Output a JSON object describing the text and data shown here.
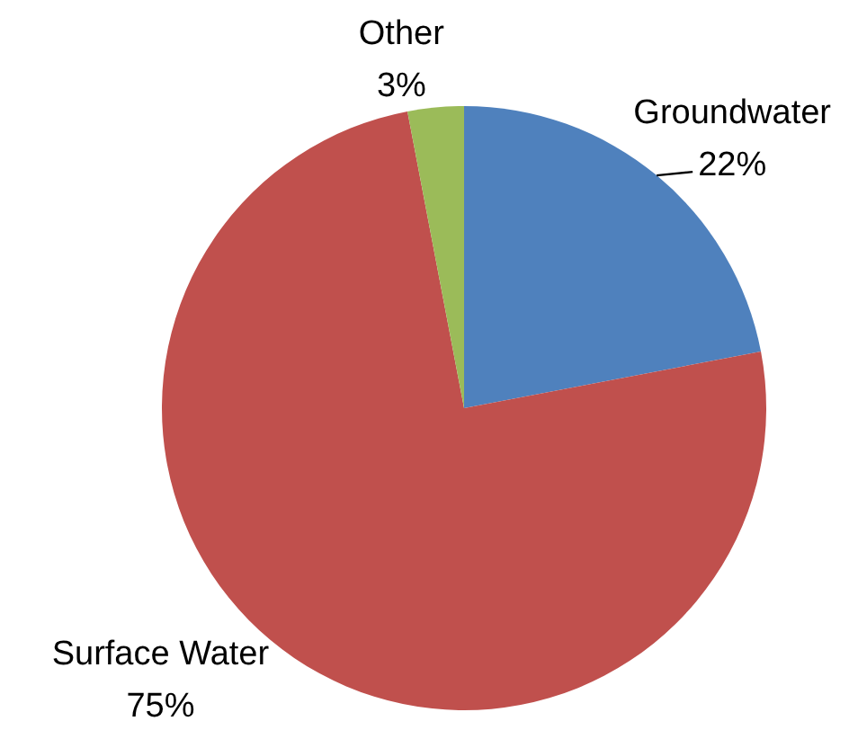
{
  "chart_data": {
    "type": "pie",
    "categories": [
      "Groundwater",
      "Surface Water",
      "Other"
    ],
    "values": [
      22,
      75,
      3
    ],
    "colors": [
      "#4f81bd",
      "#c0504d",
      "#9bbb59"
    ],
    "value_labels": [
      "22%",
      "75%",
      "3%"
    ]
  }
}
